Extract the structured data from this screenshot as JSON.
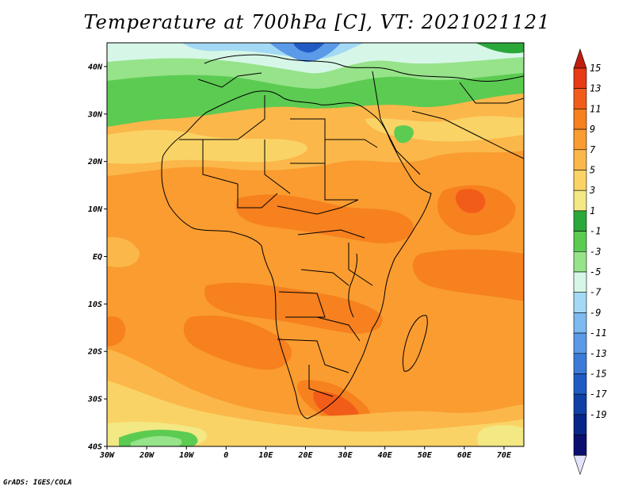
{
  "title": "Temperature at 700hPa [C], VT: 2021021121",
  "credit": "GrADS: IGES/COLA",
  "map": {
    "lon_labels": [
      "30W",
      "20W",
      "10W",
      "0",
      "10E",
      "20E",
      "30E",
      "40E",
      "50E",
      "60E",
      "70E"
    ],
    "lat_labels": [
      "40N",
      "30N",
      "20N",
      "10N",
      "EQ",
      "10S",
      "20S",
      "30S",
      "40S"
    ],
    "lon_range": [
      -30,
      75
    ],
    "lat_range": [
      -40,
      45
    ]
  },
  "colorbar": {
    "labels": [
      "15",
      "13",
      "11",
      "9",
      "7",
      "5",
      "3",
      "1",
      "-1",
      "-3",
      "-5",
      "-7",
      "-9",
      "-11",
      "-13",
      "-15",
      "-17",
      "-19"
    ],
    "colors": [
      "#e83a14",
      "#f25c19",
      "#f7801f",
      "#fa9c30",
      "#fbb74a",
      "#fad366",
      "#f2e884",
      "#2ba83a",
      "#5ccb52",
      "#96e38a",
      "#d6f7e7",
      "#a3d9f5",
      "#7cbaef",
      "#5b9ae8",
      "#3b7ad8",
      "#205bc4",
      "#1040a6",
      "#08258a",
      "#0a0f6e"
    ],
    "top_arrow_color": "#c21c10",
    "bottom_arrow_color": "#e3e3fb"
  }
}
